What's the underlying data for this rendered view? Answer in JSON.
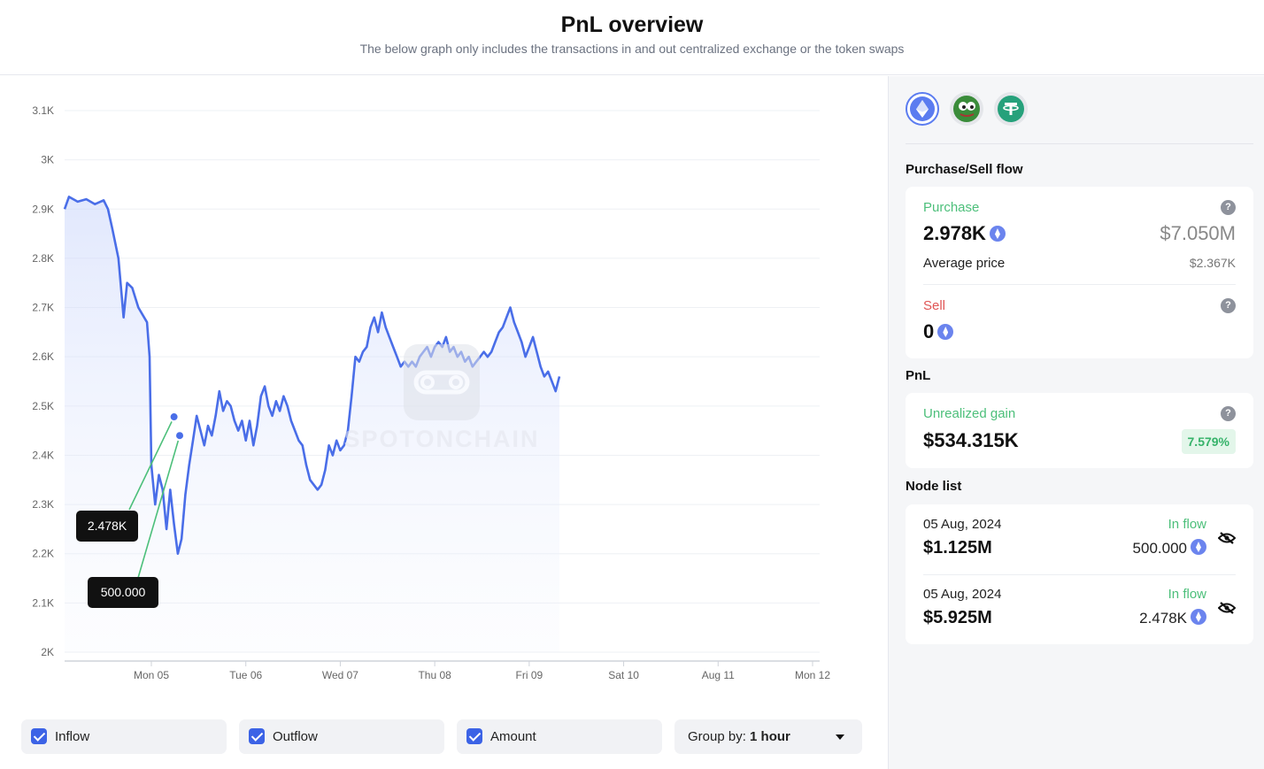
{
  "header": {
    "title": "PnL overview",
    "subtitle": "The below graph only includes the transactions in and out centralized exchange or the token swaps"
  },
  "chart_data": {
    "type": "line",
    "y_ticks": [
      "3.1K",
      "3K",
      "2.9K",
      "2.8K",
      "2.7K",
      "2.6K",
      "2.5K",
      "2.4K",
      "2.3K",
      "2.2K",
      "2.1K",
      "2K"
    ],
    "ylim": [
      2000,
      3100
    ],
    "x_ticks": [
      "Mon 05",
      "Tue 06",
      "Wed 07",
      "Thu 08",
      "Fri 09",
      "Sat 10",
      "Aug 11",
      "Mon 12"
    ],
    "series": [
      {
        "points": [
          [
            0,
            2900
          ],
          [
            0.05,
            2925
          ],
          [
            0.15,
            2915
          ],
          [
            0.25,
            2920
          ],
          [
            0.35,
            2910
          ],
          [
            0.45,
            2918
          ],
          [
            0.5,
            2900
          ],
          [
            0.55,
            2860
          ],
          [
            0.62,
            2800
          ],
          [
            0.66,
            2720
          ],
          [
            0.68,
            2680
          ],
          [
            0.72,
            2750
          ],
          [
            0.78,
            2740
          ],
          [
            0.85,
            2700
          ],
          [
            0.95,
            2670
          ],
          [
            0.98,
            2600
          ],
          [
            1.0,
            2380
          ],
          [
            1.04,
            2300
          ],
          [
            1.08,
            2360
          ],
          [
            1.12,
            2330
          ],
          [
            1.16,
            2250
          ],
          [
            1.2,
            2330
          ],
          [
            1.24,
            2260
          ],
          [
            1.28,
            2200
          ],
          [
            1.32,
            2230
          ],
          [
            1.36,
            2320
          ],
          [
            1.4,
            2380
          ],
          [
            1.44,
            2430
          ],
          [
            1.48,
            2480
          ],
          [
            1.52,
            2450
          ],
          [
            1.56,
            2420
          ],
          [
            1.6,
            2460
          ],
          [
            1.64,
            2440
          ],
          [
            1.68,
            2480
          ],
          [
            1.72,
            2530
          ],
          [
            1.76,
            2490
          ],
          [
            1.8,
            2510
          ],
          [
            1.84,
            2500
          ],
          [
            1.88,
            2470
          ],
          [
            1.92,
            2450
          ],
          [
            1.96,
            2470
          ],
          [
            2.0,
            2430
          ],
          [
            2.04,
            2470
          ],
          [
            2.08,
            2420
          ],
          [
            2.12,
            2460
          ],
          [
            2.16,
            2520
          ],
          [
            2.2,
            2540
          ],
          [
            2.24,
            2500
          ],
          [
            2.28,
            2480
          ],
          [
            2.32,
            2510
          ],
          [
            2.36,
            2490
          ],
          [
            2.4,
            2520
          ],
          [
            2.44,
            2500
          ],
          [
            2.48,
            2470
          ],
          [
            2.52,
            2450
          ],
          [
            2.56,
            2430
          ],
          [
            2.6,
            2420
          ],
          [
            2.64,
            2380
          ],
          [
            2.68,
            2350
          ],
          [
            2.72,
            2340
          ],
          [
            2.76,
            2330
          ],
          [
            2.8,
            2340
          ],
          [
            2.84,
            2370
          ],
          [
            2.88,
            2420
          ],
          [
            2.92,
            2400
          ],
          [
            2.96,
            2430
          ],
          [
            3.0,
            2410
          ],
          [
            3.04,
            2420
          ],
          [
            3.08,
            2450
          ],
          [
            3.12,
            2520
          ],
          [
            3.16,
            2600
          ],
          [
            3.2,
            2590
          ],
          [
            3.24,
            2610
          ],
          [
            3.28,
            2620
          ],
          [
            3.32,
            2660
          ],
          [
            3.36,
            2680
          ],
          [
            3.4,
            2650
          ],
          [
            3.44,
            2690
          ],
          [
            3.48,
            2660
          ],
          [
            3.52,
            2640
          ],
          [
            3.56,
            2620
          ],
          [
            3.6,
            2600
          ],
          [
            3.64,
            2580
          ],
          [
            3.68,
            2590
          ],
          [
            3.72,
            2580
          ],
          [
            3.76,
            2590
          ],
          [
            3.8,
            2580
          ],
          [
            3.84,
            2600
          ],
          [
            3.88,
            2610
          ],
          [
            3.92,
            2620
          ],
          [
            3.96,
            2600
          ],
          [
            4.0,
            2620
          ],
          [
            4.04,
            2630
          ],
          [
            4.08,
            2620
          ],
          [
            4.12,
            2640
          ],
          [
            4.16,
            2610
          ],
          [
            4.2,
            2620
          ],
          [
            4.24,
            2600
          ],
          [
            4.28,
            2610
          ],
          [
            4.32,
            2590
          ],
          [
            4.36,
            2600
          ],
          [
            4.4,
            2580
          ],
          [
            4.44,
            2590
          ],
          [
            4.48,
            2600
          ],
          [
            4.52,
            2610
          ],
          [
            4.56,
            2600
          ],
          [
            4.6,
            2610
          ],
          [
            4.64,
            2630
          ],
          [
            4.68,
            2650
          ],
          [
            4.72,
            2660
          ],
          [
            4.76,
            2680
          ],
          [
            4.8,
            2700
          ],
          [
            4.84,
            2670
          ],
          [
            4.88,
            2650
          ],
          [
            4.92,
            2630
          ],
          [
            4.96,
            2600
          ],
          [
            5.0,
            2620
          ],
          [
            5.04,
            2640
          ],
          [
            5.08,
            2610
          ],
          [
            5.12,
            2580
          ],
          [
            5.16,
            2560
          ],
          [
            5.2,
            2570
          ],
          [
            5.24,
            2550
          ],
          [
            5.28,
            2530
          ],
          [
            5.32,
            2560
          ]
        ]
      }
    ],
    "markers": [
      {
        "x": 1.24,
        "y": 2478
      },
      {
        "x": 1.3,
        "y": 2440
      }
    ],
    "annotations": [
      "2.478K",
      "500.000"
    ]
  },
  "controls": {
    "inflow_label": "Inflow",
    "outflow_label": "Outflow",
    "amount_label": "Amount",
    "group_prefix": "Group by:",
    "group_value": "1 hour"
  },
  "side": {
    "tokens": [
      "eth-icon",
      "pepe-icon",
      "tether-icon"
    ],
    "flow_title": "Purchase/Sell flow",
    "purchase": {
      "label": "Purchase",
      "amount": "2.978K",
      "usd": "$7.050M",
      "avg_label": "Average price",
      "avg_value": "$2.367K"
    },
    "sell": {
      "label": "Sell",
      "amount": "0"
    },
    "pnl_title": "PnL",
    "pnl": {
      "label": "Unrealized gain",
      "value": "$534.315K",
      "pct": "7.579%"
    },
    "nodes_title": "Node list",
    "nodes": [
      {
        "date": "05 Aug, 2024",
        "usd": "$1.125M",
        "flow": "In flow",
        "amount": "500.000"
      },
      {
        "date": "05 Aug, 2024",
        "usd": "$5.925M",
        "flow": "In flow",
        "amount": "2.478K"
      }
    ]
  },
  "colors": {
    "line": "#4a6ee8",
    "accent": "#3c63e6",
    "green": "#4cbf7a",
    "red": "#e05555"
  }
}
